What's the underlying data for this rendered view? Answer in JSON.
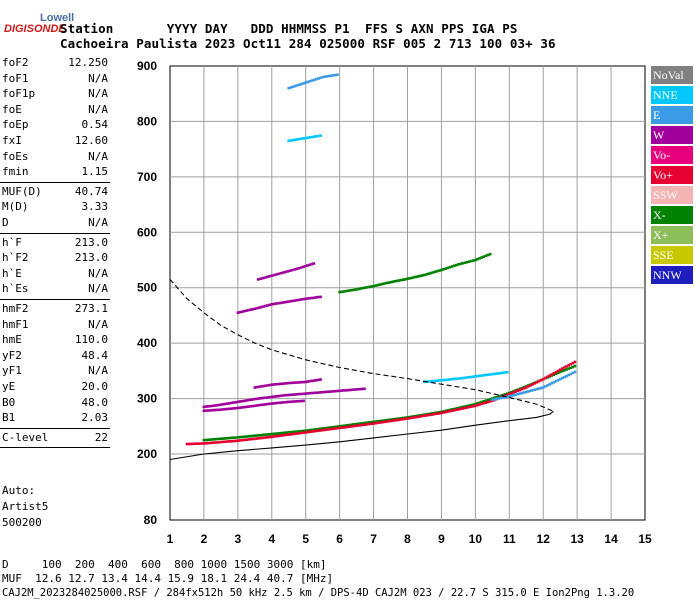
{
  "brand": {
    "line1": "Lowell",
    "line2": "DIGISONDE"
  },
  "header": {
    "row1": "Station       YYYY DAY   DDD HHMMSS P1  FFS S AXN PPS IGA PS",
    "row2": "Cachoeira Paulista 2023 Oct11 284 025000 RSF 005 2 713 100 03+ 36"
  },
  "params": [
    {
      "k": "foF2",
      "v": "12.250"
    },
    {
      "k": "foF1",
      "v": "N/A"
    },
    {
      "k": "foF1p",
      "v": "N/A"
    },
    {
      "k": "foE",
      "v": "N/A"
    },
    {
      "k": "foEp",
      "v": "0.54"
    },
    {
      "k": "fxI",
      "v": "12.60"
    },
    {
      "k": "foEs",
      "v": "N/A"
    },
    {
      "k": "fmin",
      "v": "1.15"
    },
    {
      "k": "MUF(D)",
      "v": "40.74"
    },
    {
      "k": "M(D)",
      "v": "3.33"
    },
    {
      "k": "D",
      "v": "N/A"
    },
    {
      "k": "h`F",
      "v": "213.0"
    },
    {
      "k": "h`F2",
      "v": "213.0"
    },
    {
      "k": "h`E",
      "v": "N/A"
    },
    {
      "k": "h`Es",
      "v": "N/A"
    },
    {
      "k": "hmF2",
      "v": "273.1"
    },
    {
      "k": "hmF1",
      "v": "N/A"
    },
    {
      "k": "hmE",
      "v": "110.0"
    },
    {
      "k": "yF2",
      "v": "48.4"
    },
    {
      "k": "yF1",
      "v": "N/A"
    },
    {
      "k": "yE",
      "v": "20.0"
    },
    {
      "k": "B0",
      "v": "48.0"
    },
    {
      "k": "B1",
      "v": "2.03"
    },
    {
      "k": "C-level",
      "v": "22"
    }
  ],
  "auto": {
    "line1": "Auto:",
    "line2": "Artist5",
    "line3": "500200"
  },
  "legend": [
    {
      "label": "NoVal",
      "color": "#808080"
    },
    {
      "label": "NNE",
      "color": "#00c8ff"
    },
    {
      "label": "E",
      "color": "#3c9be6"
    },
    {
      "label": "W",
      "color": "#a0009b"
    },
    {
      "label": "Vo-",
      "color": "#e6007d"
    },
    {
      "label": "Vo+",
      "color": "#e60032"
    },
    {
      "label": "SSW",
      "color": "#f5b4b4"
    },
    {
      "label": "X-",
      "color": "#008200"
    },
    {
      "label": "X+",
      "color": "#8cbe5a"
    },
    {
      "label": "SSE",
      "color": "#c8c800"
    },
    {
      "label": "NNW",
      "color": "#1e1ebe"
    }
  ],
  "footer": {
    "d_row": "D     100  200  400  600  800 1000 1500 3000 [km]",
    "muf_row": "MUF  12.6 12.7 13.4 14.4 15.9 18.1 24.4 40.7 [MHz]",
    "file_row": "CAJ2M_2023284025000.RSF / 284fx512h 50 kHz 2.5 km / DPS-4D CAJ2M 023 / 22.7 S 315.0 E Ion2Png 1.3.20"
  },
  "chart_data": {
    "type": "scatter",
    "xlim": [
      1,
      15
    ],
    "ylim": [
      80,
      900
    ],
    "x_ticks": [
      1,
      2,
      3,
      4,
      5,
      6,
      7,
      8,
      9,
      10,
      11,
      12,
      13,
      14,
      15
    ],
    "y_ticks": [
      80,
      200,
      300,
      400,
      500,
      600,
      700,
      800,
      900
    ],
    "grid": true,
    "legend_position": "right",
    "series": [
      {
        "color_ref": "W",
        "points": [
          [
            2.0,
            285
          ],
          [
            2.4,
            288
          ],
          [
            2.8,
            292
          ],
          [
            3.2,
            296
          ],
          [
            3.6,
            300
          ],
          [
            4.0,
            303
          ],
          [
            4.4,
            306
          ],
          [
            4.8,
            308
          ],
          [
            5.2,
            310
          ],
          [
            5.6,
            312
          ],
          [
            6.0,
            314
          ],
          [
            6.4,
            316
          ],
          [
            6.8,
            318
          ]
        ]
      },
      {
        "color_ref": "W",
        "points": [
          [
            2.0,
            278
          ],
          [
            2.5,
            280
          ],
          [
            3.0,
            283
          ],
          [
            3.5,
            287
          ],
          [
            4.0,
            291
          ],
          [
            4.5,
            294
          ],
          [
            5.0,
            296
          ]
        ]
      },
      {
        "color_ref": "W",
        "points": [
          [
            3.5,
            320
          ],
          [
            4.0,
            325
          ],
          [
            4.5,
            328
          ],
          [
            5.0,
            330
          ],
          [
            5.5,
            335
          ]
        ]
      },
      {
        "color_ref": "W",
        "points": [
          [
            3.0,
            455
          ],
          [
            3.5,
            462
          ],
          [
            4.0,
            470
          ],
          [
            4.5,
            475
          ],
          [
            5.0,
            480
          ],
          [
            5.5,
            484
          ]
        ]
      },
      {
        "color_ref": "W",
        "points": [
          [
            3.6,
            515
          ],
          [
            4.2,
            525
          ],
          [
            4.8,
            535
          ],
          [
            5.3,
            545
          ]
        ]
      },
      {
        "color_ref": "X-",
        "points": [
          [
            2.0,
            225
          ],
          [
            3.0,
            230
          ],
          [
            4.0,
            236
          ],
          [
            5.0,
            242
          ],
          [
            6.0,
            250
          ],
          [
            7.0,
            258
          ],
          [
            8.0,
            266
          ],
          [
            9.0,
            276
          ],
          [
            10.0,
            290
          ],
          [
            10.5,
            300
          ],
          [
            11.0,
            310
          ],
          [
            11.5,
            322
          ],
          [
            12.0,
            335
          ],
          [
            12.5,
            348
          ],
          [
            13.0,
            360
          ]
        ]
      },
      {
        "color_ref": "Vo+",
        "points": [
          [
            1.5,
            218
          ],
          [
            2.0,
            219
          ],
          [
            3.0,
            224
          ],
          [
            4.0,
            231
          ],
          [
            5.0,
            239
          ],
          [
            6.0,
            247
          ],
          [
            7.0,
            255
          ],
          [
            8.0,
            264
          ],
          [
            9.0,
            274
          ],
          [
            10.0,
            287
          ],
          [
            10.5,
            296
          ],
          [
            11.0,
            308
          ],
          [
            11.5,
            320
          ],
          [
            12.0,
            335
          ],
          [
            12.5,
            352
          ],
          [
            13.0,
            368
          ]
        ]
      },
      {
        "color_ref": "E",
        "points": [
          [
            10.5,
            298
          ],
          [
            11.0,
            304
          ],
          [
            11.5,
            312
          ],
          [
            12.0,
            320
          ],
          [
            12.5,
            335
          ],
          [
            13.0,
            350
          ]
        ]
      },
      {
        "color_ref": "NNE",
        "points": [
          [
            8.5,
            330
          ],
          [
            9.0,
            333
          ],
          [
            9.5,
            336
          ],
          [
            10.0,
            340
          ],
          [
            10.5,
            344
          ],
          [
            11.0,
            348
          ]
        ]
      },
      {
        "color_ref": "X-",
        "points": [
          [
            6.0,
            492
          ],
          [
            6.5,
            497
          ],
          [
            7.0,
            503
          ],
          [
            7.5,
            510
          ],
          [
            8.0,
            516
          ],
          [
            8.5,
            523
          ],
          [
            9.0,
            532
          ],
          [
            9.5,
            542
          ],
          [
            10.0,
            550
          ],
          [
            10.5,
            562
          ]
        ]
      },
      {
        "color_ref": "NNE",
        "points": [
          [
            4.5,
            765
          ],
          [
            5.0,
            770
          ],
          [
            5.5,
            775
          ]
        ]
      },
      {
        "color_ref": "E",
        "points": [
          [
            4.5,
            860
          ],
          [
            5.0,
            870
          ],
          [
            5.5,
            880
          ],
          [
            6.0,
            885
          ]
        ]
      }
    ],
    "profile_solid": [
      [
        1.0,
        190
      ],
      [
        2.0,
        200
      ],
      [
        3.0,
        206
      ],
      [
        4.0,
        211
      ],
      [
        5.0,
        216
      ],
      [
        6.0,
        222
      ],
      [
        7.0,
        229
      ],
      [
        8.0,
        236
      ],
      [
        9.0,
        243
      ],
      [
        10.0,
        252
      ],
      [
        11.0,
        260
      ],
      [
        11.8,
        266
      ],
      [
        12.2,
        272
      ],
      [
        12.3,
        277
      ]
    ],
    "profile_dashed": [
      [
        1.0,
        515
      ],
      [
        1.5,
        480
      ],
      [
        2.0,
        455
      ],
      [
        2.5,
        432
      ],
      [
        3.0,
        415
      ],
      [
        3.5,
        400
      ],
      [
        4.0,
        388
      ],
      [
        5.0,
        370
      ],
      [
        6.0,
        356
      ],
      [
        7.0,
        345
      ],
      [
        8.0,
        336
      ],
      [
        9.0,
        326
      ],
      [
        10.0,
        316
      ],
      [
        11.0,
        302
      ],
      [
        11.8,
        290
      ],
      [
        12.3,
        277
      ]
    ]
  }
}
